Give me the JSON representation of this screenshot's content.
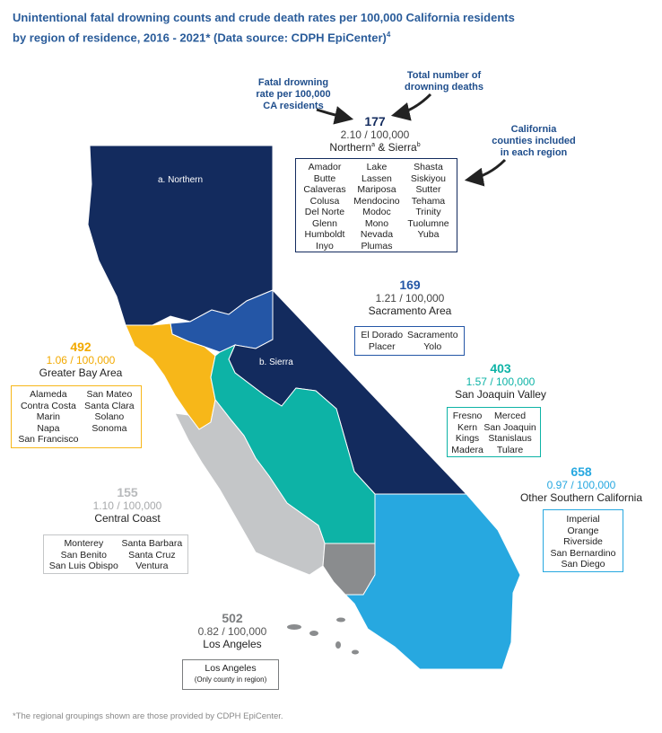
{
  "title": {
    "line1": "Unintentional fatal drowning counts and crude death rates per 100,000 California residents",
    "line2": "by region of residence, 2016 - 2021* (Data source: CDPH EpiCenter)",
    "sup": "4"
  },
  "callouts": {
    "rate": [
      "Fatal drowning",
      "rate per 100,000",
      "CA residents"
    ],
    "total": [
      "Total number of",
      "drowning deaths"
    ],
    "counties": [
      "California",
      "counties included",
      "in each region"
    ]
  },
  "map_labels": {
    "northern": "a. Northern",
    "sierra": "b. Sierra"
  },
  "colors": {
    "northern_sierra": "#132b5e",
    "sacramento": "#2456a6",
    "bay_area": "#f7b719",
    "san_joaquin": "#0db3a6",
    "central_coast": "#c4c6c8",
    "los_angeles": "#8a8c8e",
    "other_socal": "#27a8e0"
  },
  "regions": {
    "northern_sierra": {
      "count": "177",
      "rate": "2.10 / 100,000",
      "name": "Northern",
      "sup_a": "a",
      "amp": " & Sierra",
      "sup_b": "b",
      "counties": [
        [
          "Amador",
          "Butte",
          "Calaveras",
          "Colusa",
          "Del Norte",
          "Glenn",
          "Humboldt",
          "Inyo"
        ],
        [
          "Lake",
          "Lassen",
          "Mariposa",
          "Mendocino",
          "Modoc",
          "Mono",
          "Nevada",
          "Plumas"
        ],
        [
          "Shasta",
          "Siskiyou",
          "Sutter",
          "Tehama",
          "Trinity",
          "Tuolumne",
          "Yuba"
        ]
      ]
    },
    "sacramento": {
      "count": "169",
      "rate": "1.21 / 100,000",
      "name": "Sacramento Area",
      "counties": [
        [
          "El Dorado",
          "Placer"
        ],
        [
          "Sacramento",
          "Yolo"
        ]
      ]
    },
    "bay_area": {
      "count": "492",
      "rate": "1.06 / 100,000",
      "name": "Greater Bay Area",
      "counties": [
        [
          "Alameda",
          "Contra Costa",
          "Marin",
          "Napa",
          "San Francisco"
        ],
        [
          "San Mateo",
          "Santa Clara",
          "Solano",
          "Sonoma"
        ]
      ]
    },
    "san_joaquin": {
      "count": "403",
      "rate": "1.57 / 100,000",
      "name": "San Joaquin Valley",
      "counties": [
        [
          "Fresno",
          "Kern",
          "Kings",
          "Madera"
        ],
        [
          "Merced",
          "San Joaquin",
          "Stanislaus",
          "Tulare"
        ]
      ]
    },
    "central_coast": {
      "count": "155",
      "rate": "1.10 / 100,000",
      "name": "Central Coast",
      "counties": [
        [
          "Monterey",
          "San Benito",
          "San Luis Obispo"
        ],
        [
          "Santa Barbara",
          "Santa Cruz",
          "Ventura"
        ]
      ]
    },
    "los_angeles": {
      "count": "502",
      "rate": "0.82 / 100,000",
      "name": "Los Angeles",
      "counties": [
        "Los Angeles",
        "(Only county in region)"
      ]
    },
    "other_socal": {
      "count": "658",
      "rate": "0.97 / 100,000",
      "name": "Other Southern California",
      "counties": [
        "Imperial",
        "Orange",
        "Riverside",
        "San Bernardino",
        "San Diego"
      ]
    }
  },
  "footnote": "*The regional groupings shown are those provided by CDPH EpiCenter."
}
